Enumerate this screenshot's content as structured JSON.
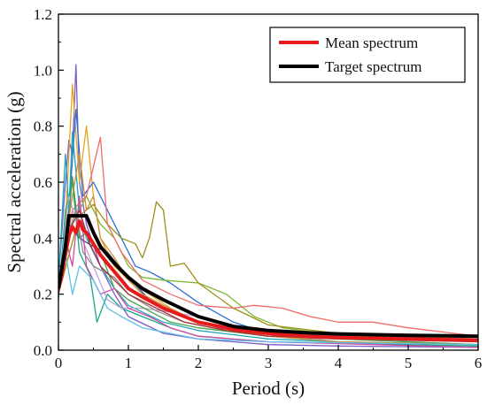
{
  "chart_data": {
    "type": "line",
    "xlabel": "Period (s)",
    "ylabel": "Spectral acceleration (g)",
    "xlim": [
      0,
      6
    ],
    "ylim": [
      0,
      1.2
    ],
    "x_ticks": [
      "0",
      "1",
      "2",
      "3",
      "4",
      "5",
      "6"
    ],
    "y_ticks": [
      "0.0",
      "0.2",
      "0.4",
      "0.6",
      "0.8",
      "1.0",
      "1.2"
    ],
    "grid": false,
    "legend_position": "top-right",
    "legend": [
      {
        "label": "Mean spectrum",
        "color": "#e8191b"
      },
      {
        "label": "Target spectrum",
        "color": "#000000"
      }
    ],
    "series": [
      {
        "name": "Target spectrum",
        "color": "#000000",
        "emphasis": true,
        "points": [
          [
            0,
            0.22
          ],
          [
            0.1,
            0.37
          ],
          [
            0.15,
            0.48
          ],
          [
            0.4,
            0.48
          ],
          [
            0.5,
            0.42
          ],
          [
            0.6,
            0.37
          ],
          [
            0.8,
            0.31
          ],
          [
            1.0,
            0.26
          ],
          [
            1.2,
            0.22
          ],
          [
            1.5,
            0.18
          ],
          [
            2.0,
            0.12
          ],
          [
            2.5,
            0.085
          ],
          [
            3.0,
            0.07
          ],
          [
            3.5,
            0.063
          ],
          [
            4.0,
            0.058
          ],
          [
            5.0,
            0.053
          ],
          [
            6.0,
            0.05
          ]
        ]
      },
      {
        "name": "Mean spectrum",
        "color": "#e8191b",
        "emphasis": true,
        "points": [
          [
            0,
            0.22
          ],
          [
            0.05,
            0.27
          ],
          [
            0.1,
            0.35
          ],
          [
            0.15,
            0.41
          ],
          [
            0.2,
            0.44
          ],
          [
            0.25,
            0.42
          ],
          [
            0.3,
            0.46
          ],
          [
            0.35,
            0.43
          ],
          [
            0.4,
            0.42
          ],
          [
            0.5,
            0.38
          ],
          [
            0.6,
            0.34
          ],
          [
            0.8,
            0.28
          ],
          [
            1.0,
            0.22
          ],
          [
            1.2,
            0.19
          ],
          [
            1.5,
            0.15
          ],
          [
            2.0,
            0.1
          ],
          [
            2.5,
            0.075
          ],
          [
            3.0,
            0.06
          ],
          [
            3.5,
            0.05
          ],
          [
            4.0,
            0.045
          ],
          [
            5.0,
            0.04
          ],
          [
            6.0,
            0.035
          ]
        ]
      },
      {
        "color": "#7d5cc8",
        "points": [
          [
            0,
            0.25
          ],
          [
            0.1,
            0.6
          ],
          [
            0.15,
            0.75
          ],
          [
            0.2,
            0.7
          ],
          [
            0.25,
            1.02
          ],
          [
            0.3,
            0.6
          ],
          [
            0.4,
            0.45
          ],
          [
            0.6,
            0.3
          ],
          [
            0.8,
            0.2
          ],
          [
            1.0,
            0.12
          ],
          [
            1.5,
            0.06
          ],
          [
            2.0,
            0.04
          ],
          [
            3.0,
            0.02
          ],
          [
            4.0,
            0.015
          ],
          [
            6.0,
            0.01
          ]
        ]
      },
      {
        "color": "#e5a521",
        "points": [
          [
            0,
            0.22
          ],
          [
            0.1,
            0.45
          ],
          [
            0.2,
            0.95
          ],
          [
            0.3,
            0.6
          ],
          [
            0.4,
            0.8
          ],
          [
            0.5,
            0.55
          ],
          [
            0.6,
            0.4
          ],
          [
            0.8,
            0.3
          ],
          [
            1.0,
            0.25
          ],
          [
            1.3,
            0.2
          ],
          [
            1.6,
            0.15
          ],
          [
            2.0,
            0.1
          ],
          [
            3.0,
            0.05
          ],
          [
            4.0,
            0.03
          ],
          [
            6.0,
            0.02
          ]
        ]
      },
      {
        "color": "#2e6fd3",
        "points": [
          [
            0,
            0.22
          ],
          [
            0.15,
            0.5
          ],
          [
            0.25,
            0.86
          ],
          [
            0.35,
            0.55
          ],
          [
            0.5,
            0.6
          ],
          [
            0.7,
            0.5
          ],
          [
            0.9,
            0.4
          ],
          [
            1.1,
            0.3
          ],
          [
            1.3,
            0.28
          ],
          [
            1.6,
            0.24
          ],
          [
            2.0,
            0.17
          ],
          [
            2.5,
            0.1
          ],
          [
            3.0,
            0.06
          ],
          [
            4.0,
            0.05
          ],
          [
            6.0,
            0.035
          ]
        ]
      },
      {
        "color": "#22a5b5",
        "points": [
          [
            0,
            0.24
          ],
          [
            0.1,
            0.7
          ],
          [
            0.15,
            0.5
          ],
          [
            0.2,
            0.78
          ],
          [
            0.3,
            0.5
          ],
          [
            0.4,
            0.4
          ],
          [
            0.6,
            0.3
          ],
          [
            0.8,
            0.22
          ],
          [
            1.0,
            0.16
          ],
          [
            1.5,
            0.1
          ],
          [
            2.0,
            0.07
          ],
          [
            3.0,
            0.04
          ],
          [
            4.0,
            0.03
          ],
          [
            6.0,
            0.02
          ]
        ]
      },
      {
        "color": "#7ab92b",
        "points": [
          [
            0,
            0.2
          ],
          [
            0.2,
            0.45
          ],
          [
            0.4,
            0.55
          ],
          [
            0.6,
            0.45
          ],
          [
            0.8,
            0.4
          ],
          [
            1.0,
            0.3
          ],
          [
            1.2,
            0.26
          ],
          [
            1.5,
            0.25
          ],
          [
            2.0,
            0.24
          ],
          [
            2.4,
            0.2
          ],
          [
            2.8,
            0.12
          ],
          [
            3.2,
            0.08
          ],
          [
            3.8,
            0.06
          ],
          [
            4.5,
            0.05
          ],
          [
            6.0,
            0.04
          ]
        ]
      },
      {
        "color": "#9c8f16",
        "points": [
          [
            0,
            0.2
          ],
          [
            0.3,
            0.48
          ],
          [
            0.5,
            0.52
          ],
          [
            0.7,
            0.45
          ],
          [
            0.9,
            0.4
          ],
          [
            1.1,
            0.38
          ],
          [
            1.2,
            0.33
          ],
          [
            1.3,
            0.4
          ],
          [
            1.4,
            0.53
          ],
          [
            1.5,
            0.5
          ],
          [
            1.6,
            0.3
          ],
          [
            1.8,
            0.31
          ],
          [
            2.0,
            0.24
          ],
          [
            2.5,
            0.15
          ],
          [
            3.0,
            0.09
          ],
          [
            4.0,
            0.06
          ],
          [
            6.0,
            0.04
          ]
        ]
      },
      {
        "color": "#ee6a6a",
        "points": [
          [
            0,
            0.22
          ],
          [
            0.2,
            0.5
          ],
          [
            0.4,
            0.55
          ],
          [
            0.6,
            0.76
          ],
          [
            0.7,
            0.45
          ],
          [
            0.9,
            0.35
          ],
          [
            1.2,
            0.25
          ],
          [
            1.6,
            0.2
          ],
          [
            2.0,
            0.16
          ],
          [
            2.5,
            0.15
          ],
          [
            2.8,
            0.16
          ],
          [
            3.2,
            0.15
          ],
          [
            3.6,
            0.12
          ],
          [
            4.0,
            0.1
          ],
          [
            4.5,
            0.1
          ],
          [
            5.0,
            0.08
          ],
          [
            6.0,
            0.05
          ]
        ]
      },
      {
        "color": "#18a58a",
        "points": [
          [
            0,
            0.18
          ],
          [
            0.1,
            0.5
          ],
          [
            0.2,
            0.6
          ],
          [
            0.3,
            0.35
          ],
          [
            0.45,
            0.27
          ],
          [
            0.55,
            0.1
          ],
          [
            0.7,
            0.2
          ],
          [
            0.9,
            0.15
          ],
          [
            1.2,
            0.12
          ],
          [
            1.6,
            0.08
          ],
          [
            2.0,
            0.05
          ],
          [
            3.0,
            0.03
          ],
          [
            6.0,
            0.015
          ]
        ]
      },
      {
        "color": "#b9a7d8",
        "points": [
          [
            0,
            0.2
          ],
          [
            0.15,
            0.55
          ],
          [
            0.3,
            0.42
          ],
          [
            0.5,
            0.3
          ],
          [
            0.7,
            0.18
          ],
          [
            0.9,
            0.15
          ],
          [
            1.2,
            0.15
          ],
          [
            1.5,
            0.14
          ],
          [
            2.0,
            0.12
          ],
          [
            2.6,
            0.08
          ],
          [
            3.0,
            0.06
          ],
          [
            4.0,
            0.03
          ],
          [
            6.0,
            0.02
          ]
        ]
      },
      {
        "color": "#3a4c8f",
        "points": [
          [
            0,
            0.22
          ],
          [
            0.15,
            0.45
          ],
          [
            0.3,
            0.4
          ],
          [
            0.5,
            0.37
          ],
          [
            0.7,
            0.35
          ],
          [
            1.0,
            0.26
          ],
          [
            1.3,
            0.18
          ],
          [
            1.6,
            0.14
          ],
          [
            2.0,
            0.1
          ],
          [
            2.5,
            0.07
          ],
          [
            3.0,
            0.05
          ],
          [
            4.0,
            0.04
          ],
          [
            6.0,
            0.03
          ]
        ]
      },
      {
        "color": "#4aa14a",
        "points": [
          [
            0,
            0.2
          ],
          [
            0.1,
            0.33
          ],
          [
            0.2,
            0.62
          ],
          [
            0.3,
            0.4
          ],
          [
            0.4,
            0.42
          ],
          [
            0.6,
            0.35
          ],
          [
            0.8,
            0.22
          ],
          [
            1.0,
            0.18
          ],
          [
            1.3,
            0.14
          ],
          [
            1.6,
            0.1
          ],
          [
            2.0,
            0.08
          ],
          [
            3.0,
            0.05
          ],
          [
            6.0,
            0.02
          ]
        ]
      },
      {
        "color": "#d04aa0",
        "points": [
          [
            0,
            0.22
          ],
          [
            0.1,
            0.4
          ],
          [
            0.2,
            0.3
          ],
          [
            0.3,
            0.55
          ],
          [
            0.4,
            0.3
          ],
          [
            0.6,
            0.2
          ],
          [
            0.8,
            0.22
          ],
          [
            1.0,
            0.15
          ],
          [
            1.3,
            0.12
          ],
          [
            1.6,
            0.08
          ],
          [
            2.0,
            0.05
          ],
          [
            3.0,
            0.03
          ],
          [
            6.0,
            0.01
          ]
        ]
      },
      {
        "color": "#cc8c3a",
        "points": [
          [
            0,
            0.23
          ],
          [
            0.2,
            0.55
          ],
          [
            0.3,
            0.7
          ],
          [
            0.4,
            0.5
          ],
          [
            0.5,
            0.55
          ],
          [
            0.6,
            0.4
          ],
          [
            0.8,
            0.33
          ],
          [
            1.0,
            0.25
          ],
          [
            1.2,
            0.2
          ],
          [
            1.5,
            0.16
          ],
          [
            2.0,
            0.1
          ],
          [
            2.5,
            0.07
          ],
          [
            3.0,
            0.05
          ],
          [
            4.0,
            0.03
          ],
          [
            6.0,
            0.02
          ]
        ]
      },
      {
        "color": "#5cc1e6",
        "points": [
          [
            0,
            0.2
          ],
          [
            0.1,
            0.35
          ],
          [
            0.2,
            0.2
          ],
          [
            0.3,
            0.3
          ],
          [
            0.5,
            0.25
          ],
          [
            0.7,
            0.15
          ],
          [
            0.9,
            0.12
          ],
          [
            1.2,
            0.08
          ],
          [
            1.6,
            0.06
          ],
          [
            2.0,
            0.04
          ],
          [
            3.0,
            0.03
          ],
          [
            6.0,
            0.02
          ]
        ]
      },
      {
        "color": "#8a8a8a",
        "points": [
          [
            0,
            0.21
          ],
          [
            0.15,
            0.42
          ],
          [
            0.25,
            0.5
          ],
          [
            0.35,
            0.35
          ],
          [
            0.5,
            0.3
          ],
          [
            0.8,
            0.26
          ],
          [
            1.0,
            0.2
          ],
          [
            1.4,
            0.14
          ],
          [
            1.8,
            0.1
          ],
          [
            2.2,
            0.08
          ],
          [
            3.0,
            0.06
          ],
          [
            4.0,
            0.05
          ],
          [
            6.0,
            0.04
          ]
        ]
      },
      {
        "color": "#a83232",
        "points": [
          [
            0,
            0.2
          ],
          [
            0.1,
            0.32
          ],
          [
            0.2,
            0.45
          ],
          [
            0.3,
            0.5
          ],
          [
            0.45,
            0.38
          ],
          [
            0.6,
            0.3
          ],
          [
            0.8,
            0.25
          ],
          [
            1.0,
            0.2
          ],
          [
            1.4,
            0.15
          ],
          [
            1.8,
            0.1
          ],
          [
            2.4,
            0.07
          ],
          [
            3.0,
            0.05
          ],
          [
            6.0,
            0.03
          ]
        ]
      }
    ]
  }
}
